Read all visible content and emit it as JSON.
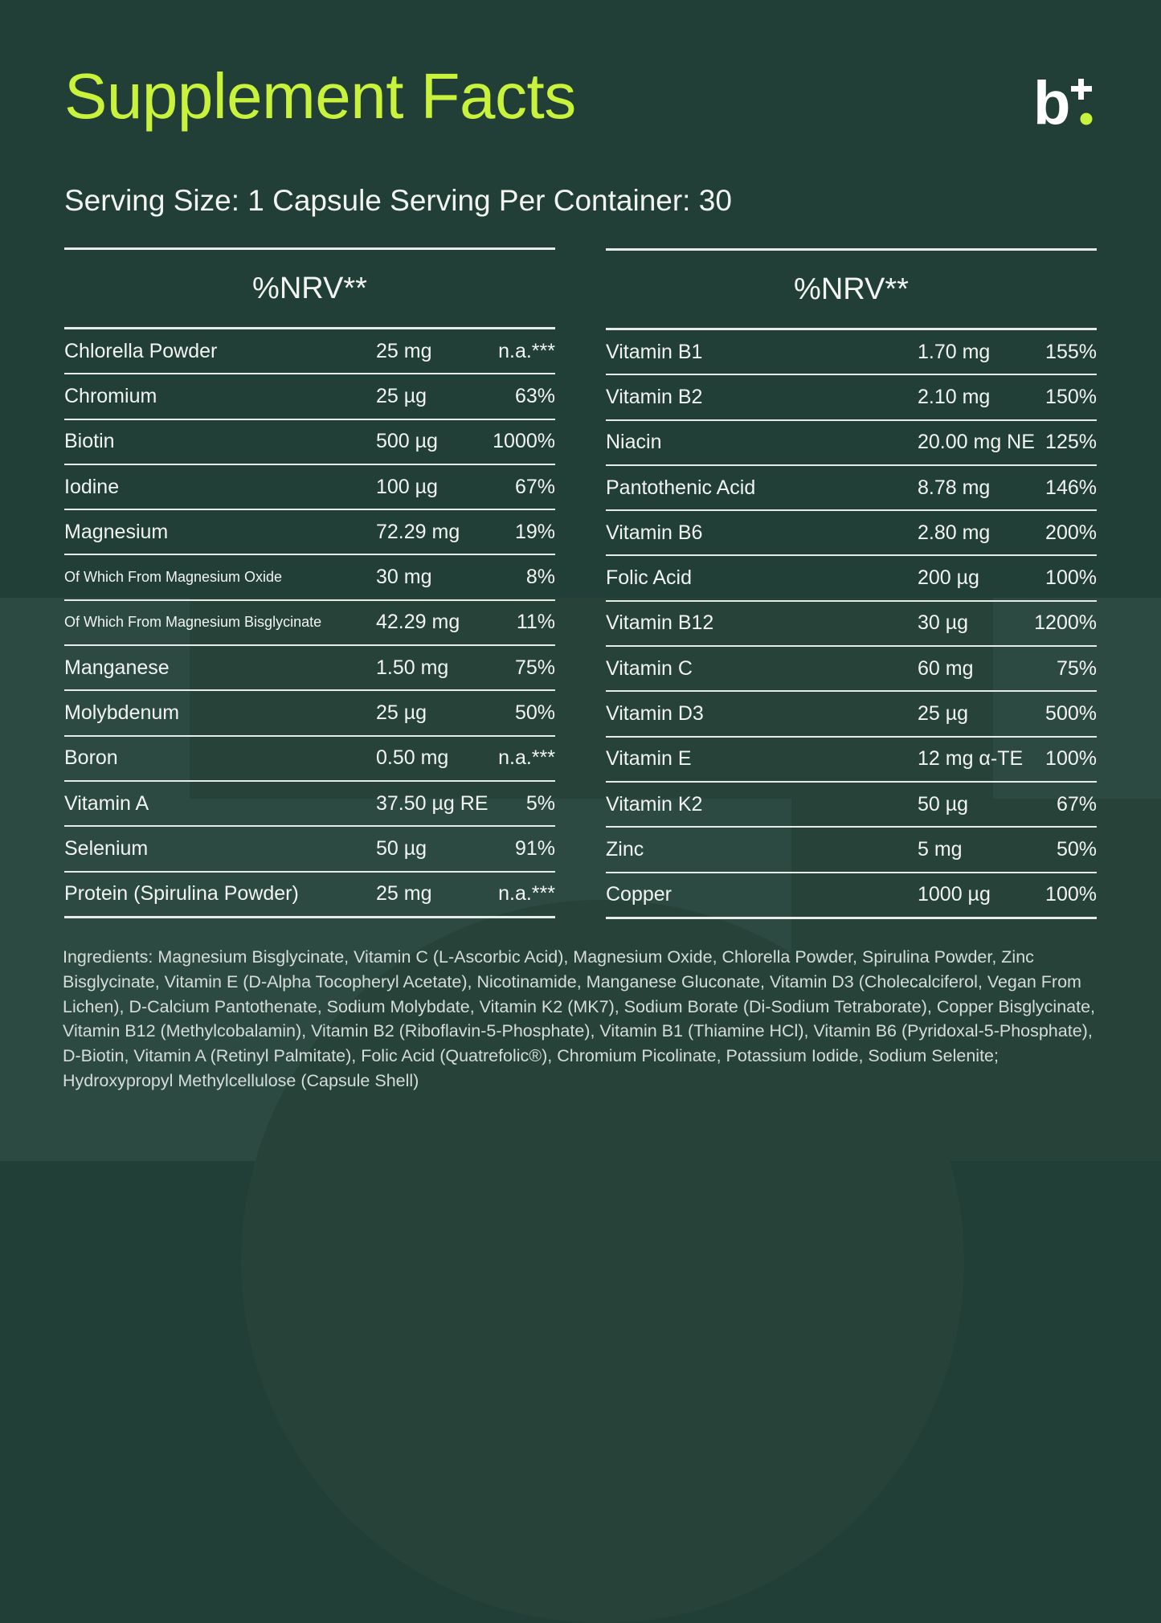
{
  "title": "Supplement Facts",
  "logo": {
    "text": "b",
    "accent_color": "#c8f23c"
  },
  "serving": "Serving Size: 1 Capsule Serving Per Container: 30",
  "left_table": {
    "header": "%NRV**",
    "rows": [
      {
        "name": "Chlorella Powder",
        "amount": "25 mg",
        "nrv": "n.a.***"
      },
      {
        "name": "Chromium",
        "amount": "25 µg",
        "nrv": "63%"
      },
      {
        "name": "Biotin",
        "amount": "500 µg",
        "nrv": "1000%"
      },
      {
        "name": "Iodine",
        "amount": "100 µg",
        "nrv": "67%"
      },
      {
        "name": "Magnesium",
        "amount": "72.29 mg",
        "nrv": "19%"
      },
      {
        "name": "Of Which From Magnesium Oxide",
        "amount": "30 mg",
        "nrv": "8%",
        "small": true
      },
      {
        "name": "Of Which From Magnesium Bisglycinate",
        "amount": "42.29 mg",
        "nrv": "11%",
        "small": true
      },
      {
        "name": "Manganese",
        "amount": "1.50 mg",
        "nrv": "75%"
      },
      {
        "name": "Molybdenum",
        "amount": "25 µg",
        "nrv": "50%"
      },
      {
        "name": "Boron",
        "amount": "0.50 mg",
        "nrv": "n.a.***"
      },
      {
        "name": "Vitamin A",
        "amount": "37.50 µg RE",
        "nrv": "5%"
      },
      {
        "name": "Selenium",
        "amount": "50 µg",
        "nrv": "91%"
      },
      {
        "name": "Protein (Spirulina Powder)",
        "amount": "25 mg",
        "nrv": "n.a.***"
      }
    ]
  },
  "right_table": {
    "header": "%NRV**",
    "rows": [
      {
        "name": "Vitamin B1",
        "amount": "1.70 mg",
        "nrv": "155%"
      },
      {
        "name": "Vitamin B2",
        "amount": "2.10 mg",
        "nrv": "150%"
      },
      {
        "name": "Niacin",
        "amount": "20.00 mg NE",
        "nrv": "125%"
      },
      {
        "name": "Pantothenic Acid",
        "amount": "8.78 mg",
        "nrv": "146%"
      },
      {
        "name": "Vitamin B6",
        "amount": "2.80 mg",
        "nrv": "200%"
      },
      {
        "name": "Folic Acid",
        "amount": "200 µg",
        "nrv": "100%"
      },
      {
        "name": "Vitamin B12",
        "amount": "30 µg",
        "nrv": "1200%"
      },
      {
        "name": "Vitamin C",
        "amount": "60 mg",
        "nrv": "75%"
      },
      {
        "name": "Vitamin D3",
        "amount": "25 µg",
        "nrv": "500%"
      },
      {
        "name": "Vitamin E",
        "amount": "12 mg α-TE",
        "nrv": "100%"
      },
      {
        "name": "Vitamin K2",
        "amount": "50 µg",
        "nrv": "67%"
      },
      {
        "name": "Zinc",
        "amount": "5 mg",
        "nrv": "50%"
      },
      {
        "name": "Copper",
        "amount": "1000 µg",
        "nrv": "100%"
      }
    ]
  },
  "ingredients": "Ingredients: Magnesium Bisglycinate, Vitamin C (L-Ascorbic Acid), Magnesium Oxide, Chlorella Powder, Spirulina Powder, Zinc Bisglycinate, Vitamin E (D-Alpha Tocopheryl Acetate), Nicotinamide, Manganese Gluconate, Vitamin D3 (Cholecalciferol, Vegan From Lichen), D-Calcium Pantothenate, Sodium Molybdate, Vitamin K2 (MK7), Sodium Borate (Di-Sodium Tetraborate), Copper Bisglycinate, Vitamin B12 (Methylcobalamin), Vitamin B2 (Riboflavin-5-Phosphate), Vitamin B1 (Thiamine HCl), Vitamin B6 (Pyridoxal-5-Phosphate), D-Biotin, Vitamin A (Retinyl Palmitate), Folic Acid (Quatrefolic®), Chromium Picolinate, Potassium Iodide, Sodium Selenite; Hydroxypropyl Methylcellulose (Capsule Shell)"
}
